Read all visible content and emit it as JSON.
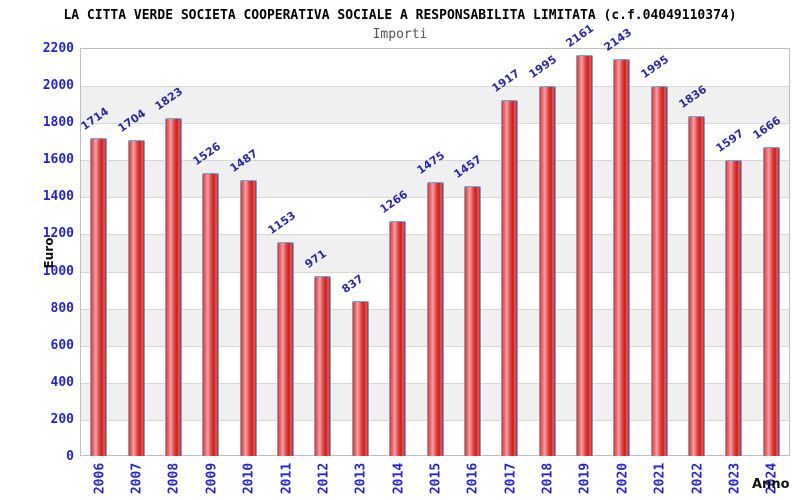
{
  "header": {
    "title": "LA CITTA VERDE SOCIETA COOPERATIVA SOCIALE A RESPONSABILITA LIMITATA (c.f.04049110374)",
    "subtitle": "Importi"
  },
  "chart_data": {
    "type": "bar",
    "title": "LA CITTA VERDE SOCIETA COOPERATIVA SOCIALE A RESPONSABILITA LIMITATA (c.f.04049110374)",
    "subtitle": "Importi",
    "xlabel": "Anno",
    "ylabel": "Euro",
    "categories": [
      "2006",
      "2007",
      "2008",
      "2009",
      "2010",
      "2011",
      "2012",
      "2013",
      "2014",
      "2015",
      "2016",
      "2017",
      "2018",
      "2019",
      "2020",
      "2021",
      "2022",
      "2023",
      "2024"
    ],
    "values": [
      1714,
      1704,
      1823,
      1526,
      1487,
      1153,
      971,
      837,
      1266,
      1475,
      1457,
      1917,
      1995,
      2161,
      2143,
      1995,
      1836,
      1597,
      1666
    ],
    "ylim": [
      0,
      2200
    ],
    "ytick_step": 200,
    "yticks": [
      0,
      200,
      400,
      600,
      800,
      1000,
      1200,
      1400,
      1600,
      1800,
      2000,
      2200
    ],
    "grid": "horizontal alternating bands every 200 units, light gridlines at ticks",
    "legend": "none",
    "bar_value_labels": "shown above bars, rotated -35deg",
    "x_tick_labels": "rotated -90deg",
    "colors": {
      "bar_fill_main": "#d42222",
      "bar_fill_highlight": "#f3a0a0",
      "bar_outline": "#6ba6e4",
      "tick_label": "#2525cd",
      "value_label": "#2b2ba5",
      "band_gray": "#f0f0f0",
      "band_white": "#ffffff",
      "gridline": "#d8d8d8",
      "plot_border": "#c0c0c0",
      "title_color": "#000000",
      "subtitle_color": "#555555",
      "axis_title_color": "#111111",
      "background": "#ffffff"
    }
  }
}
